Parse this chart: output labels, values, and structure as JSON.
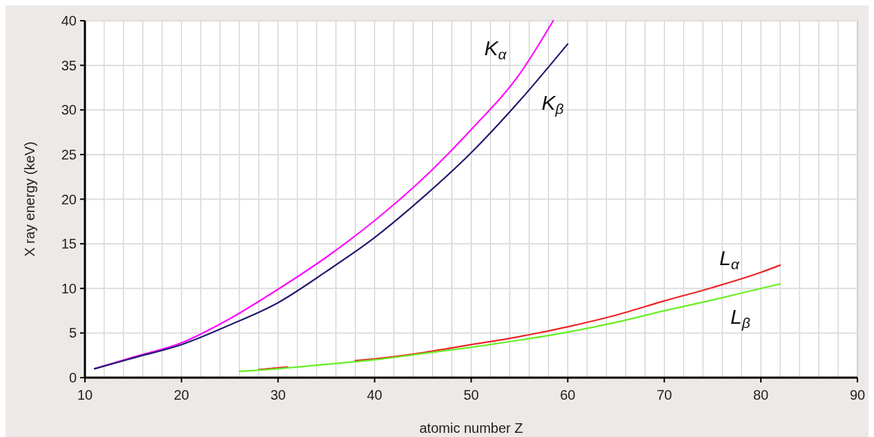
{
  "chart_data": {
    "type": "line",
    "xlabel": "atomic number Z",
    "ylabel": "X ray energy (keV)",
    "xlim": [
      10,
      90
    ],
    "xticks": [
      10,
      20,
      30,
      40,
      50,
      60,
      70,
      80,
      90
    ],
    "ylim": [
      0,
      40
    ],
    "yticks": [
      0,
      5,
      10,
      15,
      20,
      25,
      30,
      35,
      40
    ],
    "grid": true,
    "marker": "none",
    "line_style": "solid",
    "series": [
      {
        "name": "K$_{α}$",
        "color": "#ff00ff",
        "x": [
          11,
          15,
          20,
          25,
          30,
          35,
          40,
          45,
          50,
          55,
          58.5
        ],
        "values": [
          1.0,
          2.3,
          3.9,
          6.6,
          9.9,
          13.5,
          17.6,
          22.3,
          27.8,
          34.0,
          40
        ]
      },
      {
        "name": "K$_{β}$",
        "color": "#1f1a6e",
        "x": [
          11,
          15,
          20,
          25,
          30,
          35,
          40,
          45,
          50,
          55,
          60
        ],
        "values": [
          1.0,
          2.2,
          3.7,
          5.9,
          8.4,
          11.9,
          15.7,
          20.2,
          25.2,
          31.0,
          37.4
        ]
      },
      {
        "name": "L$_{α}$",
        "color": "#ee2222",
        "x": [
          38,
          40,
          45,
          50,
          55,
          60,
          65,
          70,
          75,
          80,
          82
        ],
        "values": [
          1.9,
          2.1,
          2.8,
          3.7,
          4.6,
          5.7,
          7.0,
          8.6,
          10.1,
          11.8,
          12.6
        ]
      },
      {
        "color": "#ee2222",
        "x": [
          28,
          31
        ],
        "values": [
          0.9,
          1.2
        ]
      },
      {
        "name": "L$_{β}$",
        "color": "#66ee22",
        "x": [
          26,
          30,
          35,
          40,
          45,
          50,
          55,
          60,
          65,
          70,
          75,
          80,
          82
        ],
        "values": [
          0.7,
          1.0,
          1.5,
          2.0,
          2.7,
          3.4,
          4.2,
          5.1,
          6.2,
          7.5,
          8.7,
          10.0,
          10.5
        ]
      }
    ]
  }
}
